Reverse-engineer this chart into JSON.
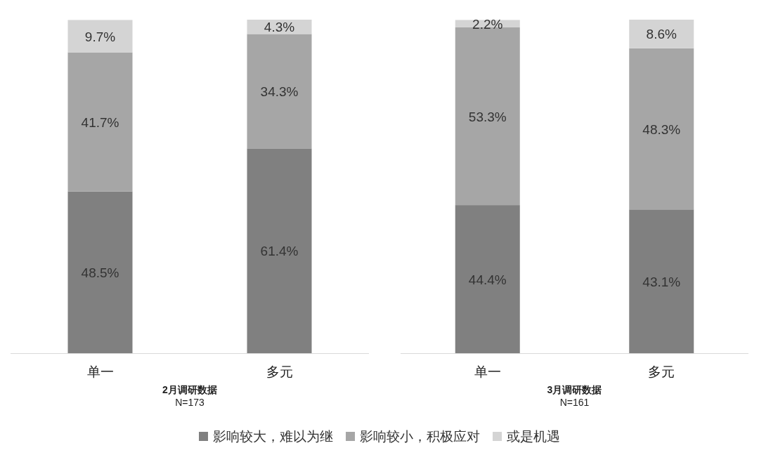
{
  "chart_data": [
    {
      "type": "bar",
      "stacked": true,
      "legend": "bottom",
      "title": "2月调研数据",
      "subtitle": "N=173",
      "categories": [
        "单一",
        "多元"
      ],
      "series": [
        {
          "name": "影响较大，难以为继",
          "color": "#808080",
          "values": [
            48.5,
            61.4
          ],
          "value_labels": [
            "48.5%",
            "61.4%"
          ]
        },
        {
          "name": "影响较小，积极应对",
          "color": "#a6a6a6",
          "values": [
            41.7,
            34.3
          ],
          "value_labels": [
            "41.7%",
            "34.3%"
          ]
        },
        {
          "name": "或是机遇",
          "color": "#d4d4d4",
          "values": [
            9.7,
            4.3
          ],
          "value_labels": [
            "9.7%",
            "4.3%"
          ]
        }
      ]
    },
    {
      "type": "bar",
      "stacked": true,
      "title": "3月调研数据",
      "subtitle": "N=161",
      "categories": [
        "单一",
        "多元"
      ],
      "series": [
        {
          "color": "#808080",
          "values": [
            44.4,
            43.1
          ],
          "value_labels": [
            "44.4%",
            "43.1%"
          ]
        },
        {
          "color": "#a6a6a6",
          "values": [
            53.3,
            48.3
          ],
          "value_labels": [
            "53.3%",
            "48.3%"
          ]
        },
        {
          "color": "#d4d4d4",
          "values": [
            2.2,
            8.6
          ],
          "value_labels": [
            "2.2%",
            "8.6%"
          ]
        }
      ]
    }
  ]
}
